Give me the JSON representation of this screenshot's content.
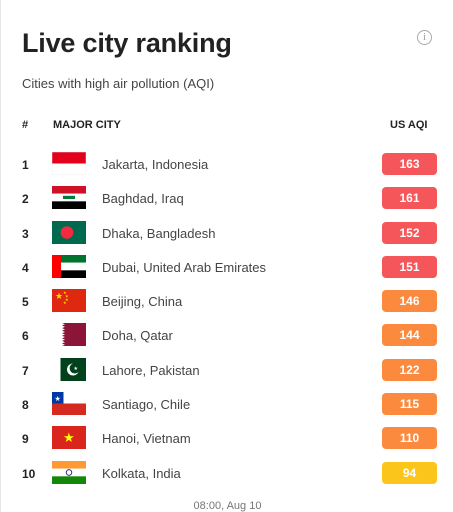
{
  "widget": {
    "title": "Live city ranking",
    "subtitle": "Cities with high air pollution (AQI)",
    "info_icon": "info-icon"
  },
  "table": {
    "headers": {
      "rank": "#",
      "city": "MAJOR CITY",
      "aqi": "US AQI"
    },
    "rows": [
      {
        "rank": "1",
        "city": "Jakarta, Indonesia",
        "aqi": "163",
        "flag": "indonesia-flag-icon",
        "color": "#f5565a"
      },
      {
        "rank": "2",
        "city": "Baghdad, Iraq",
        "aqi": "161",
        "flag": "iraq-flag-icon",
        "color": "#f5565a"
      },
      {
        "rank": "3",
        "city": "Dhaka, Bangladesh",
        "aqi": "152",
        "flag": "bangladesh-flag-icon",
        "color": "#f5565a"
      },
      {
        "rank": "4",
        "city": "Dubai, United Arab Emirates",
        "aqi": "151",
        "flag": "uae-flag-icon",
        "color": "#f5565a"
      },
      {
        "rank": "5",
        "city": "Beijing, China",
        "aqi": "146",
        "flag": "china-flag-icon",
        "color": "#fb8a3e"
      },
      {
        "rank": "6",
        "city": "Doha, Qatar",
        "aqi": "144",
        "flag": "qatar-flag-icon",
        "color": "#fb8a3e"
      },
      {
        "rank": "7",
        "city": "Lahore, Pakistan",
        "aqi": "122",
        "flag": "pakistan-flag-icon",
        "color": "#fb8a3e"
      },
      {
        "rank": "8",
        "city": "Santiago, Chile",
        "aqi": "115",
        "flag": "chile-flag-icon",
        "color": "#fb8a3e"
      },
      {
        "rank": "9",
        "city": "Hanoi, Vietnam",
        "aqi": "110",
        "flag": "vietnam-flag-icon",
        "color": "#fb8a3e"
      },
      {
        "rank": "10",
        "city": "Kolkata, India",
        "aqi": "94",
        "flag": "india-flag-icon",
        "color": "#fcc51c"
      }
    ]
  },
  "footer": {
    "timestamp": "08:00, Aug 10"
  }
}
